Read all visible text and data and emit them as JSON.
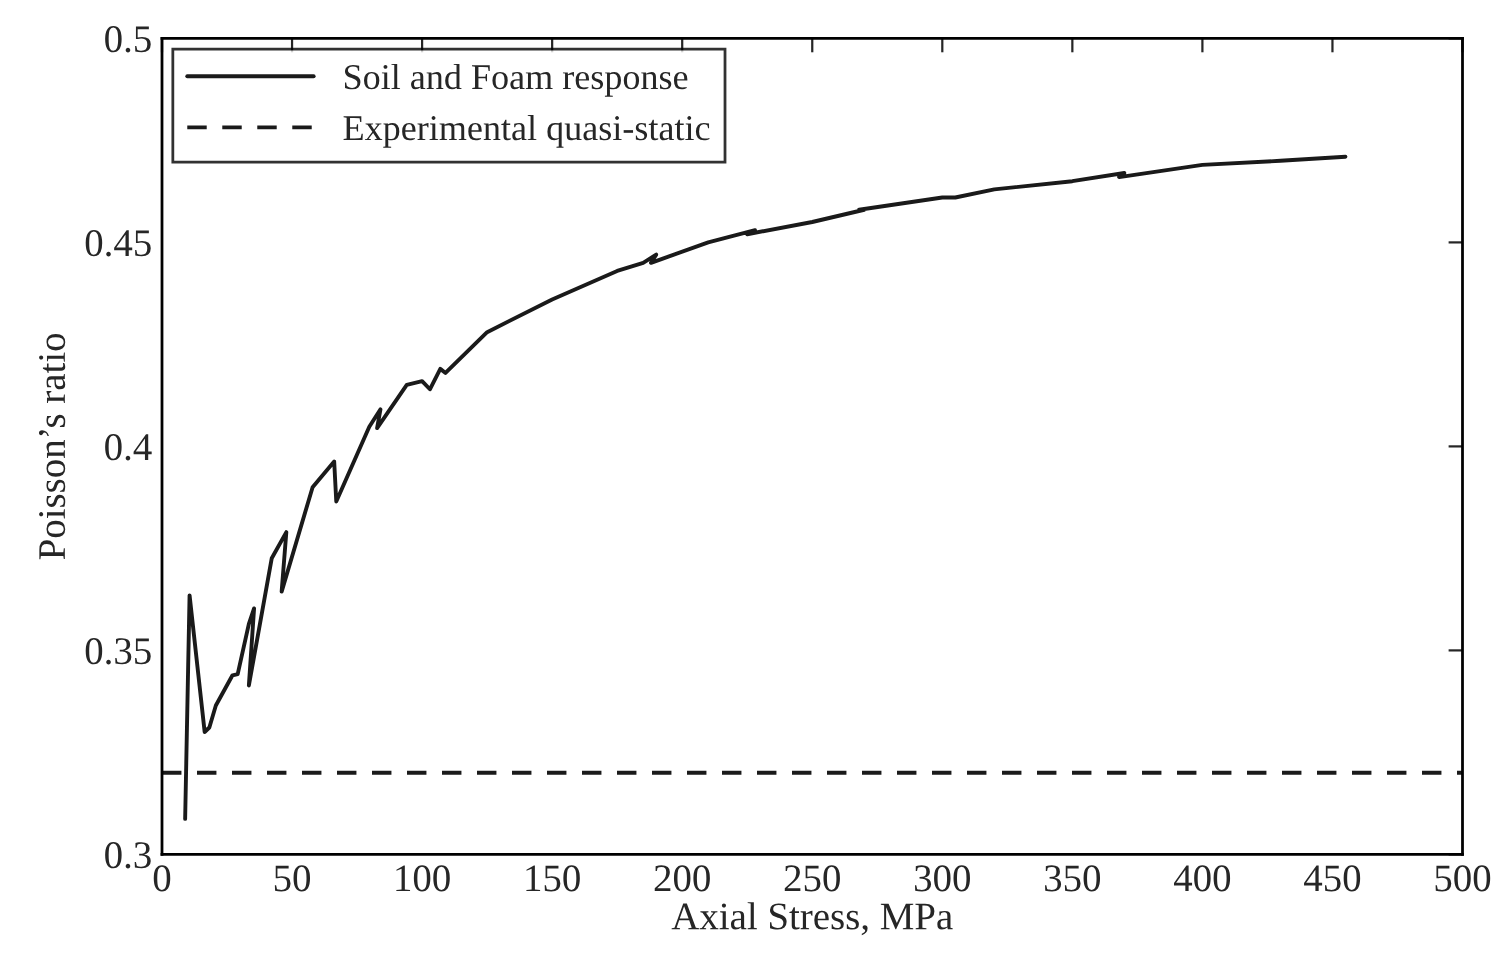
{
  "chart_data": {
    "type": "line",
    "xlabel": "Axial Stress, MPa",
    "ylabel": "Poisson’s ratio",
    "series": [
      {
        "name": "Soil and Foam response",
        "color": "#1a1a1a",
        "line_style": "solid",
        "x": [
          8.9,
          10.6,
          16.4,
          18.2,
          20.7,
          27.1,
          29.1,
          33.4,
          35.4,
          33.4,
          42.2,
          47.8,
          46.0,
          57.9,
          66.2,
          67.0,
          79.7,
          84.0,
          82.7,
          94.1,
          100,
          103,
          107,
          109,
          125,
          150,
          175,
          185,
          190,
          188,
          210,
          228,
          225,
          250,
          270,
          268,
          300,
          305,
          320,
          350,
          370,
          368,
          400,
          430,
          455
        ],
        "values": [
          0.3087,
          0.3635,
          0.33,
          0.3311,
          0.3365,
          0.3439,
          0.3442,
          0.3565,
          0.3603,
          0.3414,
          0.3726,
          0.379,
          0.3644,
          0.39,
          0.3963,
          0.3865,
          0.4048,
          0.4091,
          0.4045,
          0.4151,
          0.416,
          0.414,
          0.419,
          0.418,
          0.428,
          0.436,
          0.443,
          0.445,
          0.447,
          0.445,
          0.45,
          0.453,
          0.452,
          0.455,
          0.458,
          0.458,
          0.461,
          0.461,
          0.463,
          0.465,
          0.467,
          0.466,
          0.469,
          0.47,
          0.471
        ]
      },
      {
        "name": "Experimental quasi-static",
        "color": "#1a1a1a",
        "line_style": "dashed",
        "x": [
          0,
          500
        ],
        "values": [
          0.32,
          0.32
        ]
      }
    ],
    "xlim": [
      0,
      500
    ],
    "ylim": [
      0.3,
      0.5
    ],
    "xticks": [
      0,
      50,
      100,
      150,
      200,
      250,
      300,
      350,
      400,
      450,
      500
    ],
    "yticks": [
      0.3,
      0.35,
      0.4,
      0.45,
      0.5
    ],
    "grid": false,
    "legend": "top left"
  }
}
